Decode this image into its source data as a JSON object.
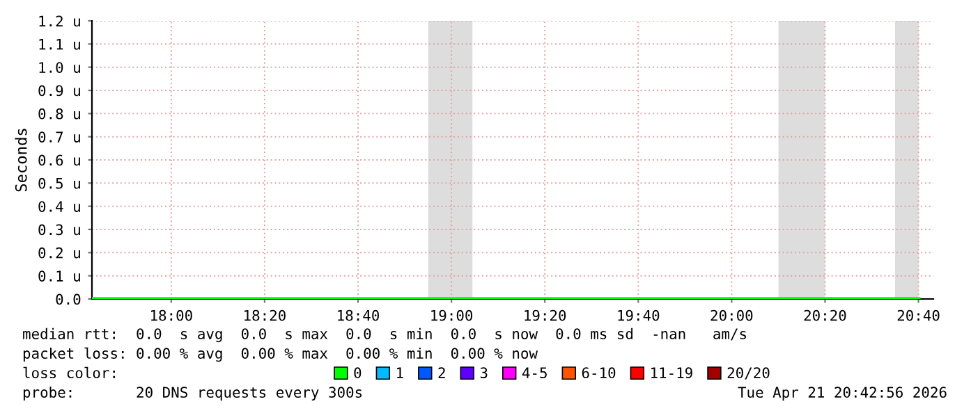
{
  "chart_data": {
    "type": "line",
    "ylabel": "Seconds",
    "x": [
      17.717,
      20.667
    ],
    "series": [
      {
        "name": "0",
        "color": "#00ff00",
        "values": [
          0,
          0
        ]
      },
      {
        "name": "1",
        "color": "#00bbff",
        "values": [
          null,
          null
        ]
      },
      {
        "name": "2",
        "color": "#0059ff",
        "values": [
          null,
          null
        ]
      },
      {
        "name": "3",
        "color": "#5e00ff",
        "values": [
          null,
          null
        ]
      },
      {
        "name": "4-5",
        "color": "#ff00ff",
        "values": [
          null,
          null
        ]
      },
      {
        "name": "6-10",
        "color": "#ff5500",
        "values": [
          null,
          null
        ]
      },
      {
        "name": "11-19",
        "color": "#ff0000",
        "values": [
          null,
          null
        ]
      },
      {
        "name": "20/20",
        "color": "#a10000",
        "values": [
          null,
          null
        ]
      }
    ],
    "legend_title": "loss color:",
    "legend": "bottom",
    "xlim": [
      17.717,
      20.72
    ],
    "xticks": [
      {
        "value": 18,
        "label": "18:00"
      },
      {
        "value": 18.3333,
        "label": "18:20"
      },
      {
        "value": 18.6667,
        "label": "18:40"
      },
      {
        "value": 19,
        "label": "19:00"
      },
      {
        "value": 19.3333,
        "label": "19:20"
      },
      {
        "value": 19.6667,
        "label": "19:40"
      },
      {
        "value": 20,
        "label": "20:00"
      },
      {
        "value": 20.3333,
        "label": "20:20"
      },
      {
        "value": 20.6667,
        "label": "20:40"
      }
    ],
    "ylim": [
      0,
      1.2
    ],
    "yticks": [
      {
        "value": 0,
        "label": "0.0"
      },
      {
        "value": 0.1,
        "label": "0.1 u"
      },
      {
        "value": 0.2,
        "label": "0.2 u"
      },
      {
        "value": 0.3,
        "label": "0.3 u"
      },
      {
        "value": 0.4,
        "label": "0.4 u"
      },
      {
        "value": 0.5,
        "label": "0.5 u"
      },
      {
        "value": 0.6,
        "label": "0.6 u"
      },
      {
        "value": 0.7,
        "label": "0.7 u"
      },
      {
        "value": 0.8,
        "label": "0.8 u"
      },
      {
        "value": 0.9,
        "label": "0.9 u"
      },
      {
        "value": 1.0,
        "label": "1.0 u"
      },
      {
        "value": 1.1,
        "label": "1.1 u"
      },
      {
        "value": 1.2,
        "label": "1.2 u"
      }
    ],
    "grid": true,
    "bands": [
      {
        "axis": "x",
        "from": 18.917,
        "to": 19.075,
        "color": "#dddddd"
      },
      {
        "axis": "x",
        "from": 20.167,
        "to": 20.333,
        "color": "#dddddd"
      },
      {
        "axis": "x",
        "from": 20.583,
        "to": 20.667,
        "color": "#dddddd"
      }
    ],
    "annotations": [
      "median rtt:  0.0  s avg  0.0  s max  0.0  s min  0.0  s now  0.0 ms sd  -nan   am/s",
      "packet loss: 0.00 % avg  0.00 % max  0.00 % min  0.00 % now",
      "probe:       20 DNS requests every 300s",
      "Tue Apr 21 20:42:56 2026"
    ]
  }
}
